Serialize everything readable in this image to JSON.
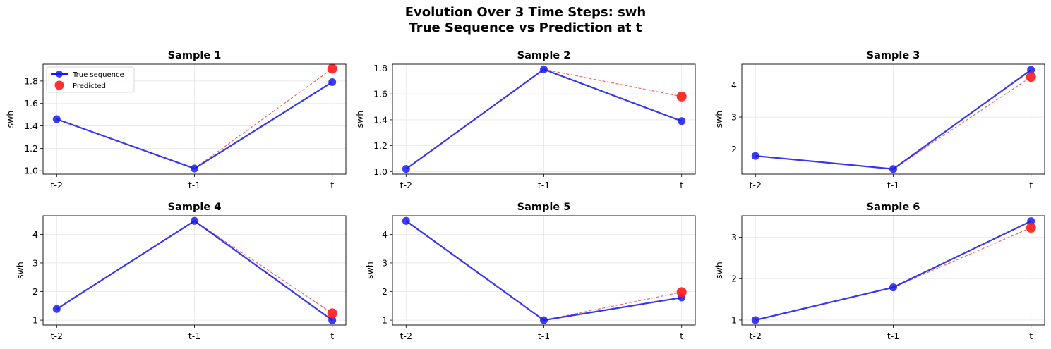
{
  "figure": {
    "title_line1": "Evolution Over 3 Time Steps: swh",
    "title_line2": "True Sequence vs Prediction at t"
  },
  "colors": {
    "true_sequence": "#1a1aee",
    "predicted": "#ff1a1a",
    "connector": "#ee5555",
    "grid": "#e6e6e6"
  },
  "legend": {
    "placement": "upper-left",
    "shown_in": "Sample 1",
    "entries": [
      "True sequence",
      "Predicted"
    ]
  },
  "chart_data": [
    {
      "type": "line",
      "title": "Sample 1",
      "ylabel": "swh",
      "categories": [
        "t-2",
        "t-1",
        "t"
      ],
      "ylim": [
        0.97,
        1.95
      ],
      "yticks": [
        "1.0",
        "1.2",
        "1.4",
        "1.6",
        "1.8"
      ],
      "grid": true,
      "series": [
        {
          "name": "True sequence",
          "values": [
            1.46,
            1.02,
            1.79
          ]
        },
        {
          "name": "Predicted",
          "x": "t",
          "value": 1.91
        }
      ]
    },
    {
      "type": "line",
      "title": "Sample 2",
      "ylabel": "swh",
      "categories": [
        "t-2",
        "t-1",
        "t"
      ],
      "ylim": [
        0.98,
        1.83
      ],
      "yticks": [
        "1.0",
        "1.2",
        "1.4",
        "1.6",
        "1.8"
      ],
      "grid": true,
      "series": [
        {
          "name": "True sequence",
          "values": [
            1.02,
            1.79,
            1.39
          ]
        },
        {
          "name": "Predicted",
          "x": "t",
          "value": 1.58
        }
      ]
    },
    {
      "type": "line",
      "title": "Sample 3",
      "ylabel": "swh",
      "categories": [
        "t-2",
        "t-1",
        "t"
      ],
      "ylim": [
        1.22,
        4.65
      ],
      "yticks": [
        "2",
        "3",
        "4"
      ],
      "grid": true,
      "series": [
        {
          "name": "True sequence",
          "values": [
            1.79,
            1.38,
            4.47
          ]
        },
        {
          "name": "Predicted",
          "x": "t",
          "value": 4.25
        }
      ]
    },
    {
      "type": "line",
      "title": "Sample 4",
      "ylabel": "swh",
      "categories": [
        "t-2",
        "t-1",
        "t"
      ],
      "ylim": [
        0.83,
        4.65
      ],
      "yticks": [
        "1",
        "2",
        "3",
        "4"
      ],
      "grid": true,
      "series": [
        {
          "name": "True sequence",
          "values": [
            1.39,
            4.47,
            1.0
          ]
        },
        {
          "name": "Predicted",
          "x": "t",
          "value": 1.24
        }
      ]
    },
    {
      "type": "line",
      "title": "Sample 5",
      "ylabel": "swh",
      "categories": [
        "t-2",
        "t-1",
        "t"
      ],
      "ylim": [
        0.83,
        4.65
      ],
      "yticks": [
        "1",
        "2",
        "3",
        "4"
      ],
      "grid": true,
      "series": [
        {
          "name": "True sequence",
          "values": [
            4.47,
            1.0,
            1.79
          ]
        },
        {
          "name": "Predicted",
          "x": "t",
          "value": 1.98
        }
      ]
    },
    {
      "type": "line",
      "title": "Sample 6",
      "ylabel": "swh",
      "categories": [
        "t-2",
        "t-1",
        "t"
      ],
      "ylim": [
        0.88,
        3.52
      ],
      "yticks": [
        "1",
        "2",
        "3"
      ],
      "grid": true,
      "series": [
        {
          "name": "True sequence",
          "values": [
            1.0,
            1.79,
            3.39
          ]
        },
        {
          "name": "Predicted",
          "x": "t",
          "value": 3.23
        }
      ]
    }
  ]
}
